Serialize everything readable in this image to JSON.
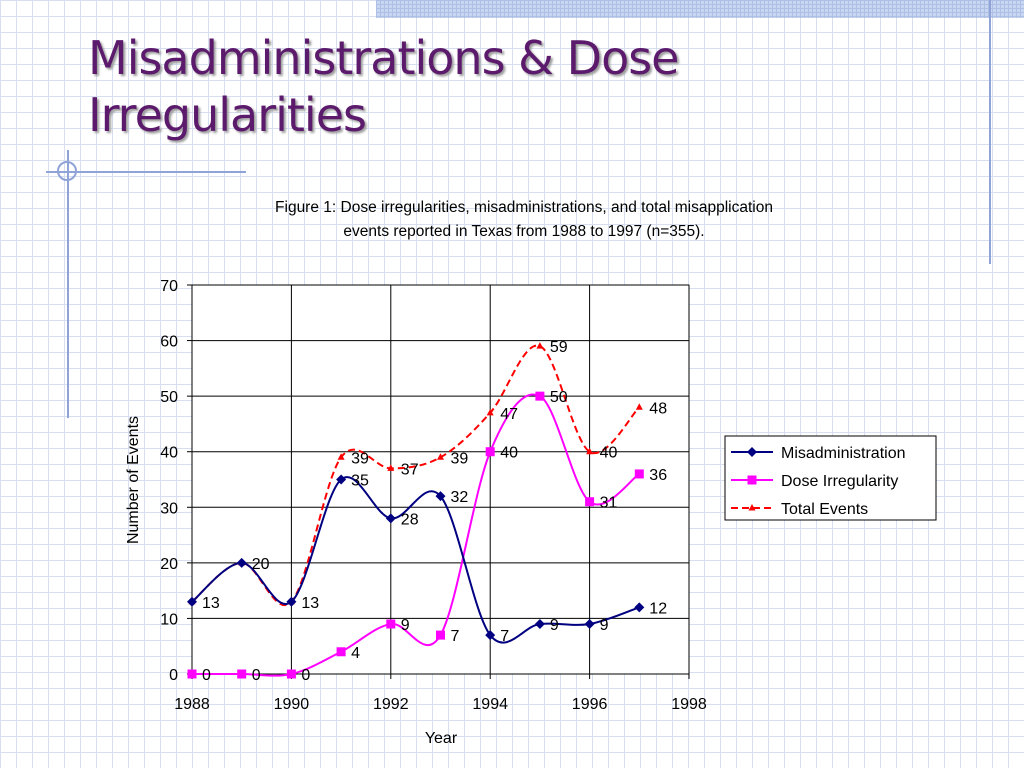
{
  "slide": {
    "title_line1": "Misadministrations & Dose",
    "title_line2": "Irregularities",
    "title_color": "#5b1a6b"
  },
  "chart_data": {
    "type": "line",
    "title": "Figure 1:  Dose irregularities, misadministrations, and total misapplication",
    "subtitle": "events reported  in Texas from 1988 to 1997 (n=355).",
    "xlabel": "Year",
    "ylabel": "Number of Events",
    "xlim": [
      1988,
      1998
    ],
    "ylim": [
      0,
      70
    ],
    "x_ticks": [
      1988,
      1990,
      1992,
      1994,
      1996,
      1998
    ],
    "y_ticks": [
      0,
      10,
      20,
      30,
      40,
      50,
      60,
      70
    ],
    "grid": true,
    "legend_position": "right",
    "x": [
      1988,
      1989,
      1990,
      1991,
      1992,
      1993,
      1994,
      1995,
      1996,
      1997
    ],
    "series": [
      {
        "name": "Misadministration",
        "values": [
          13,
          20,
          13,
          35,
          28,
          32,
          7,
          9,
          9,
          12
        ],
        "color": "#000080",
        "marker": "diamond",
        "line": "solid"
      },
      {
        "name": "Dose Irregularity",
        "values": [
          0,
          0,
          0,
          4,
          9,
          7,
          40,
          50,
          31,
          36
        ],
        "color": "#ff00ff",
        "marker": "square",
        "line": "solid"
      },
      {
        "name": "Total Events",
        "values": [
          13,
          20,
          13,
          39,
          37,
          39,
          47,
          59,
          40,
          48
        ],
        "color": "#ff0000",
        "marker": "triangle",
        "line": "dashed"
      }
    ],
    "data_labels": [
      {
        "series": 0,
        "labels": [
          "13",
          "20",
          "13",
          "35",
          "28",
          "32",
          "7",
          "9",
          "9",
          "12"
        ]
      },
      {
        "series": 1,
        "labels": [
          "0",
          "0",
          "0",
          "4",
          "9",
          "7",
          "40",
          "50",
          "31",
          "36"
        ]
      },
      {
        "series": 2,
        "labels": [
          "",
          "",
          "",
          "39",
          "37",
          "39",
          "47",
          "59",
          "40",
          "48"
        ]
      }
    ]
  }
}
